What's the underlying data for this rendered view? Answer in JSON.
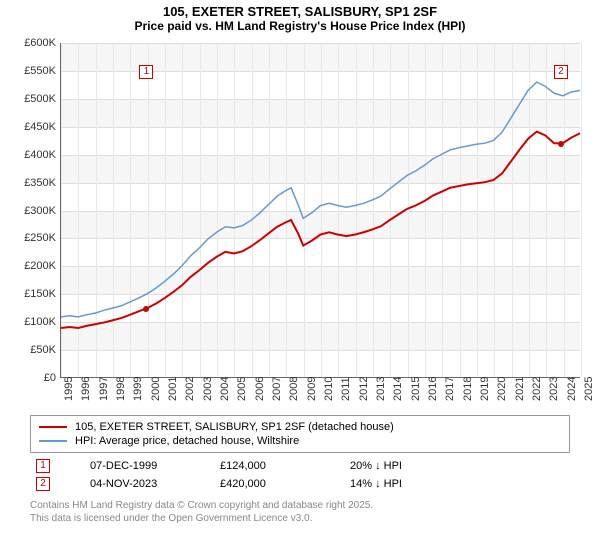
{
  "title": "105, EXETER STREET, SALISBURY, SP1 2SF",
  "subtitle": "Price paid vs. HM Land Registry's House Price Index (HPI)",
  "chart": {
    "type": "line",
    "ylim": [
      0,
      600
    ],
    "ytick_step": 50,
    "ytick_prefix": "£",
    "ytick_suffix": "K",
    "xlim": [
      1995,
      2025
    ],
    "xticks": [
      1995,
      1996,
      1997,
      1998,
      1999,
      2000,
      2001,
      2002,
      2003,
      2004,
      2005,
      2006,
      2007,
      2008,
      2009,
      2010,
      2011,
      2012,
      2013,
      2014,
      2015,
      2016,
      2017,
      2018,
      2019,
      2020,
      2021,
      2022,
      2023,
      2024,
      2025
    ],
    "background_color": "#ffffff",
    "grid_color": "#dddddd",
    "shade_color": "#f6f6f6",
    "series": [
      {
        "name": "hpi",
        "color": "#6699cc",
        "width": 1.5,
        "label": "HPI: Average price, detached house, Wiltshire",
        "points": [
          [
            1995,
            108
          ],
          [
            1995.5,
            110
          ],
          [
            1996,
            108
          ],
          [
            1996.5,
            112
          ],
          [
            1997,
            115
          ],
          [
            1997.5,
            120
          ],
          [
            1998,
            124
          ],
          [
            1998.5,
            128
          ],
          [
            1999,
            135
          ],
          [
            1999.5,
            142
          ],
          [
            2000,
            150
          ],
          [
            2000.5,
            160
          ],
          [
            2001,
            172
          ],
          [
            2001.5,
            185
          ],
          [
            2002,
            200
          ],
          [
            2002.5,
            218
          ],
          [
            2003,
            232
          ],
          [
            2003.5,
            248
          ],
          [
            2004,
            260
          ],
          [
            2004.5,
            270
          ],
          [
            2005,
            268
          ],
          [
            2005.5,
            272
          ],
          [
            2006,
            282
          ],
          [
            2006.5,
            295
          ],
          [
            2007,
            310
          ],
          [
            2007.5,
            325
          ],
          [
            2008,
            335
          ],
          [
            2008.3,
            340
          ],
          [
            2008.7,
            310
          ],
          [
            2009,
            285
          ],
          [
            2009.5,
            295
          ],
          [
            2010,
            308
          ],
          [
            2010.5,
            312
          ],
          [
            2011,
            308
          ],
          [
            2011.5,
            305
          ],
          [
            2012,
            308
          ],
          [
            2012.5,
            312
          ],
          [
            2013,
            318
          ],
          [
            2013.5,
            325
          ],
          [
            2014,
            338
          ],
          [
            2014.5,
            350
          ],
          [
            2015,
            362
          ],
          [
            2015.5,
            370
          ],
          [
            2016,
            380
          ],
          [
            2016.5,
            392
          ],
          [
            2017,
            400
          ],
          [
            2017.5,
            408
          ],
          [
            2018,
            412
          ],
          [
            2018.5,
            415
          ],
          [
            2019,
            418
          ],
          [
            2019.5,
            420
          ],
          [
            2020,
            425
          ],
          [
            2020.5,
            440
          ],
          [
            2021,
            465
          ],
          [
            2021.5,
            490
          ],
          [
            2022,
            515
          ],
          [
            2022.5,
            530
          ],
          [
            2023,
            522
          ],
          [
            2023.5,
            510
          ],
          [
            2024,
            505
          ],
          [
            2024.5,
            512
          ],
          [
            2025,
            515
          ]
        ]
      },
      {
        "name": "property",
        "color": "#cc0000",
        "width": 2,
        "label": "105, EXETER STREET, SALISBURY, SP1 2SF (detached house)",
        "points": [
          [
            1995,
            88
          ],
          [
            1995.5,
            90
          ],
          [
            1996,
            88
          ],
          [
            1996.5,
            92
          ],
          [
            1997,
            95
          ],
          [
            1997.5,
            98
          ],
          [
            1998,
            102
          ],
          [
            1998.5,
            106
          ],
          [
            1999,
            112
          ],
          [
            1999.5,
            118
          ],
          [
            2000,
            124
          ],
          [
            2000.5,
            132
          ],
          [
            2001,
            142
          ],
          [
            2001.5,
            153
          ],
          [
            2002,
            165
          ],
          [
            2002.5,
            180
          ],
          [
            2003,
            192
          ],
          [
            2003.5,
            205
          ],
          [
            2004,
            216
          ],
          [
            2004.5,
            225
          ],
          [
            2005,
            222
          ],
          [
            2005.5,
            226
          ],
          [
            2006,
            235
          ],
          [
            2006.5,
            246
          ],
          [
            2007,
            258
          ],
          [
            2007.5,
            270
          ],
          [
            2008,
            278
          ],
          [
            2008.3,
            282
          ],
          [
            2008.7,
            258
          ],
          [
            2009,
            236
          ],
          [
            2009.5,
            245
          ],
          [
            2010,
            256
          ],
          [
            2010.5,
            260
          ],
          [
            2011,
            256
          ],
          [
            2011.5,
            253
          ],
          [
            2012,
            256
          ],
          [
            2012.5,
            260
          ],
          [
            2013,
            265
          ],
          [
            2013.5,
            271
          ],
          [
            2014,
            282
          ],
          [
            2014.5,
            292
          ],
          [
            2015,
            302
          ],
          [
            2015.5,
            308
          ],
          [
            2016,
            316
          ],
          [
            2016.5,
            326
          ],
          [
            2017,
            333
          ],
          [
            2017.5,
            340
          ],
          [
            2018,
            343
          ],
          [
            2018.5,
            346
          ],
          [
            2019,
            348
          ],
          [
            2019.5,
            350
          ],
          [
            2020,
            354
          ],
          [
            2020.5,
            366
          ],
          [
            2021,
            387
          ],
          [
            2021.5,
            408
          ],
          [
            2022,
            428
          ],
          [
            2022.5,
            441
          ],
          [
            2023,
            434
          ],
          [
            2023.5,
            420
          ],
          [
            2024,
            420
          ],
          [
            2024.5,
            430
          ],
          [
            2025,
            438
          ]
        ]
      }
    ],
    "markers": [
      {
        "id": "1",
        "x": 1999.93,
        "y_dot": 124,
        "y_box": 33.5,
        "box_above": true,
        "color": "#cc0000"
      },
      {
        "id": "2",
        "x": 2023.84,
        "y_dot": 420,
        "y_box": 33.5,
        "box_above": true,
        "color": "#cc0000"
      }
    ]
  },
  "table": {
    "rows": [
      {
        "id": "1",
        "color": "#cc0000",
        "date": "07-DEC-1999",
        "price": "£124,000",
        "diff": "20% ↓ HPI"
      },
      {
        "id": "2",
        "color": "#cc0000",
        "date": "04-NOV-2023",
        "price": "£420,000",
        "diff": "14% ↓ HPI"
      }
    ]
  },
  "footer_line1": "Contains HM Land Registry data © Crown copyright and database right 2025.",
  "footer_line2": "This data is licensed under the Open Government Licence v3.0."
}
